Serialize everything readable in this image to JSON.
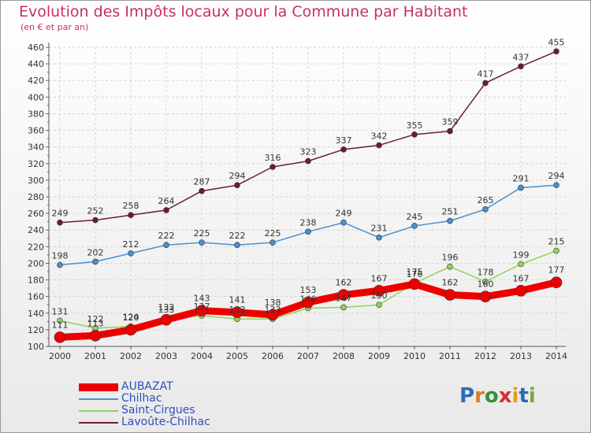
{
  "title": "Evolution des Impôts locaux pour la Commune par Habitant",
  "subtitle": "(en € et par an)",
  "logo": {
    "letters": [
      "P",
      "r",
      "o",
      "x",
      "i",
      "t",
      "i"
    ],
    "colors": [
      "#2a6db5",
      "#e07b1a",
      "#3a8f3a",
      "#d32f2f",
      "#e0a01a",
      "#2a6db5",
      "#7aa83a"
    ]
  },
  "chart_data": {
    "type": "line",
    "x": [
      2000,
      2001,
      2002,
      2003,
      2004,
      2005,
      2006,
      2007,
      2008,
      2009,
      2010,
      2011,
      2012,
      2013,
      2014
    ],
    "ylim": [
      100,
      460
    ],
    "yticks": [
      100,
      120,
      140,
      160,
      180,
      200,
      220,
      240,
      260,
      280,
      300,
      320,
      340,
      360,
      380,
      400,
      420,
      440,
      460
    ],
    "grid": true,
    "legend_position": "bottom-left",
    "series": [
      {
        "name": "Lavoûte-Chilhac",
        "color": "#6b1f2a",
        "width": 1.5,
        "marker": 3.5,
        "values": [
          249,
          252,
          258,
          264,
          287,
          294,
          316,
          323,
          337,
          342,
          355,
          359,
          417,
          437,
          455
        ]
      },
      {
        "name": "Chilhac",
        "color": "#4a8fd0",
        "width": 1.5,
        "marker": 3.5,
        "values": [
          198,
          202,
          212,
          222,
          225,
          222,
          225,
          238,
          249,
          231,
          245,
          251,
          265,
          291,
          294
        ]
      },
      {
        "name": "Saint-Cirgues",
        "color": "#8ed45a",
        "width": 1.5,
        "marker": 3.5,
        "values": [
          131,
          122,
          124,
          133,
          137,
          133,
          133,
          146,
          147,
          150,
          176,
          196,
          178,
          199,
          215
        ]
      },
      {
        "name": "AUBAZAT",
        "color": "#ee0000",
        "width": 9,
        "marker": 7,
        "values": [
          111,
          113,
          120,
          132,
          143,
          141,
          138,
          153,
          162,
          167,
          175,
          162,
          160,
          167,
          177
        ]
      }
    ]
  }
}
